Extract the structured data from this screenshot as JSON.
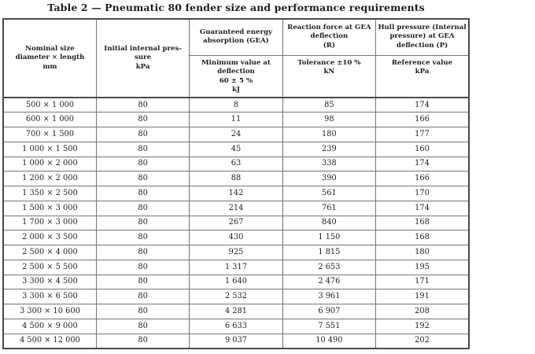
{
  "title": "Table 2 — Pneumatic 80 fender size and performance requirements",
  "table": {
    "header": {
      "nominal_size": "Nominal size\ndiameter × length\nmm",
      "initial_pressure": "Initial internal pres-\nsure\nkPa",
      "gea_top": "Guaranteed energy\nabsorption (GEA)",
      "gea_sub": "Minimum value at\ndeflection\n60 ± 5 %\nkJ",
      "reaction_top": "Reaction force at GEA\ndeflection\n(R)",
      "reaction_sub": "Tolerance ±10 %\nkN",
      "hull_top": "Hull pressure (Internal\npressure) at GEA\ndeflection (P)",
      "hull_sub": "Reference value\nkPa"
    },
    "rows": [
      [
        "500 × 1 000",
        "80",
        "8",
        "85",
        "174"
      ],
      [
        "600 × 1 000",
        "80",
        "11",
        "98",
        "166"
      ],
      [
        "700 × 1 500",
        "80",
        "24",
        "180",
        "177"
      ],
      [
        "1 000 × 1 500",
        "80",
        "45",
        "239",
        "160"
      ],
      [
        "1 000 × 2 000",
        "80",
        "63",
        "338",
        "174"
      ],
      [
        "1 200 × 2 000",
        "80",
        "88",
        "390",
        "166"
      ],
      [
        "1 350 × 2 500",
        "80",
        "142",
        "561",
        "170"
      ],
      [
        "1 500 × 3 000",
        "80",
        "214",
        "761",
        "174"
      ],
      [
        "1 700 × 3 000",
        "80",
        "267",
        "840",
        "168"
      ],
      [
        "2 000 × 3 500",
        "80",
        "430",
        "1 150",
        "168"
      ],
      [
        "2 500 × 4 000",
        "80",
        "925",
        "1 815",
        "180"
      ],
      [
        "2 500 × 5 500",
        "80",
        "1 317",
        "2 653",
        "195"
      ],
      [
        "3 300 × 4 500",
        "80",
        "1 640",
        "2 476",
        "171"
      ],
      [
        "3 300 × 6 500",
        "80",
        "2 532",
        "3 961",
        "191"
      ],
      [
        "3 300 × 10 600",
        "80",
        "4 281",
        "6 907",
        "208"
      ],
      [
        "4 500 × 9 000",
        "80",
        "6 633",
        "7 551",
        "192"
      ],
      [
        "4 500 × 12 000",
        "80",
        "9 037",
        "10 490",
        "202"
      ]
    ],
    "colors": {
      "text": "#1e1e1e",
      "border_inner": "#757575",
      "border_outer": "#4a4a4a",
      "background": "#ffffff"
    }
  }
}
